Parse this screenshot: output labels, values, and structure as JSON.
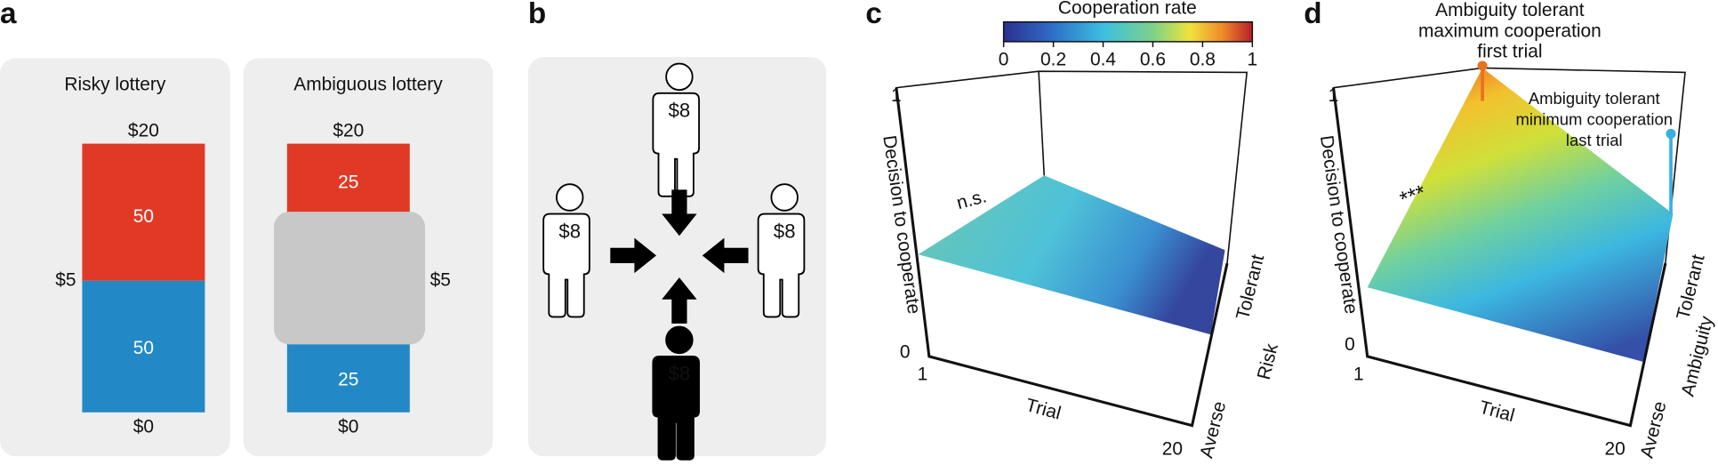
{
  "panels": {
    "a": {
      "label": "a",
      "risky": {
        "title": "Risky lottery",
        "top": "$20",
        "middle": "$5",
        "bottom": "$0",
        "upper": "50",
        "lower": "50"
      },
      "ambiguous": {
        "title": "Ambiguous lottery",
        "top": "$20",
        "middle": "$5",
        "bottom": "$0",
        "upper": "25",
        "lower": "25"
      }
    },
    "b": {
      "label": "b",
      "players": [
        "$8",
        "$8",
        "$8",
        "$8"
      ]
    },
    "c": {
      "label": "c",
      "colorbar": {
        "title": "Cooperation rate",
        "range": [
          0,
          1
        ],
        "ticks": [
          0,
          0.2,
          0.4,
          0.6,
          0.8,
          1
        ]
      },
      "z_axis": "Decision to cooperate",
      "z_ticks": [
        1,
        0
      ],
      "x_axis": "Trial",
      "x_ticks": [
        1,
        20
      ],
      "y_axis": "Risk",
      "y_ends": [
        "Tolerant",
        "Averse"
      ],
      "annotation": "n.s."
    },
    "d": {
      "label": "d",
      "z_axis": "Decision to cooperate",
      "z_ticks": [
        1,
        0
      ],
      "x_axis": "Trial",
      "x_ticks": [
        1,
        20
      ],
      "y_axis": "Ambiguity",
      "y_ends": [
        "Tolerant",
        "Averse"
      ],
      "annotation": "***",
      "max_callout": [
        "Ambiguity tolerant",
        "maximum cooperation",
        "first trial"
      ],
      "min_callout": [
        "Ambiguity tolerant",
        "minimum cooperation",
        "last trial"
      ]
    }
  }
}
